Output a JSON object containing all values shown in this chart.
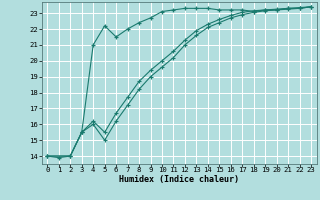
{
  "xlabel": "Humidex (Indice chaleur)",
  "bg_color": "#b2dede",
  "grid_color": "#ffffff",
  "line_color": "#1a7a6e",
  "xlim": [
    -0.5,
    23.5
  ],
  "ylim": [
    13.5,
    23.7
  ],
  "yticks": [
    14,
    15,
    16,
    17,
    18,
    19,
    20,
    21,
    22,
    23
  ],
  "xticks": [
    0,
    1,
    2,
    3,
    4,
    5,
    6,
    7,
    8,
    9,
    10,
    11,
    12,
    13,
    14,
    15,
    16,
    17,
    18,
    19,
    20,
    21,
    22,
    23
  ],
  "line1_x": [
    0,
    1,
    2,
    3,
    4,
    5,
    6,
    7,
    8,
    9,
    10,
    11,
    12,
    13,
    14,
    15,
    16,
    17,
    18,
    19,
    20,
    21,
    22,
    23
  ],
  "line1_y": [
    14.0,
    13.9,
    14.0,
    15.5,
    21.0,
    22.2,
    21.5,
    22.0,
    22.4,
    22.7,
    23.1,
    23.2,
    23.3,
    23.3,
    23.3,
    23.2,
    23.2,
    23.2,
    23.1,
    23.2,
    23.2,
    23.3,
    23.3,
    23.4
  ],
  "line2_x": [
    0,
    2,
    3,
    4,
    5,
    6,
    7,
    8,
    9,
    10,
    11,
    12,
    13,
    14,
    15,
    16,
    17,
    18,
    19,
    20,
    21,
    22,
    23
  ],
  "line2_y": [
    14.0,
    14.0,
    15.5,
    16.0,
    15.0,
    16.2,
    17.2,
    18.2,
    19.0,
    19.6,
    20.2,
    21.0,
    21.6,
    22.1,
    22.4,
    22.7,
    22.9,
    23.05,
    23.15,
    23.2,
    23.25,
    23.3,
    23.4
  ],
  "line3_x": [
    0,
    2,
    3,
    4,
    5,
    6,
    7,
    8,
    9,
    10,
    11,
    12,
    13,
    14,
    15,
    16,
    17,
    18,
    19,
    20,
    21,
    22,
    23
  ],
  "line3_y": [
    14.0,
    14.0,
    15.5,
    16.2,
    15.5,
    16.7,
    17.7,
    18.7,
    19.4,
    20.0,
    20.6,
    21.3,
    21.9,
    22.3,
    22.6,
    22.85,
    23.05,
    23.15,
    23.2,
    23.25,
    23.3,
    23.35,
    23.4
  ]
}
